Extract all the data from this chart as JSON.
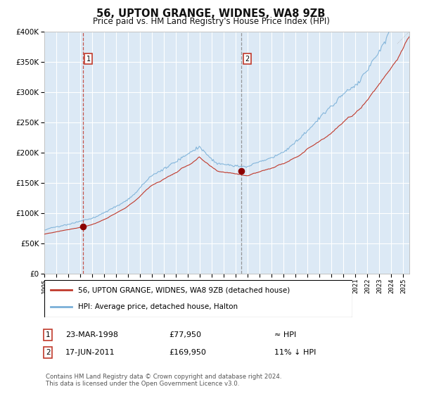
{
  "title": "56, UPTON GRANGE, WIDNES, WA8 9ZB",
  "subtitle": "Price paid vs. HM Land Registry's House Price Index (HPI)",
  "legend_line1": "56, UPTON GRANGE, WIDNES, WA8 9ZB (detached house)",
  "legend_line2": "HPI: Average price, detached house, Halton",
  "annotation1_date": "23-MAR-1998",
  "annotation1_price": "£77,950",
  "annotation1_hpi": "≈ HPI",
  "annotation2_date": "17-JUN-2011",
  "annotation2_price": "£169,950",
  "annotation2_hpi": "11% ↓ HPI",
  "footer": "Contains HM Land Registry data © Crown copyright and database right 2024.\nThis data is licensed under the Open Government Licence v3.0.",
  "hpi_color": "#7ab0d8",
  "price_color": "#c0392b",
  "dot_color": "#8b0000",
  "bg_color": "#dce9f5",
  "grid_color": "#ffffff",
  "ylim": [
    0,
    400000
  ],
  "xlim_start": 1995.0,
  "xlim_end": 2025.5,
  "sale1_x": 1998.22,
  "sale1_y": 77950,
  "sale2_x": 2011.46,
  "sale2_y": 169950
}
